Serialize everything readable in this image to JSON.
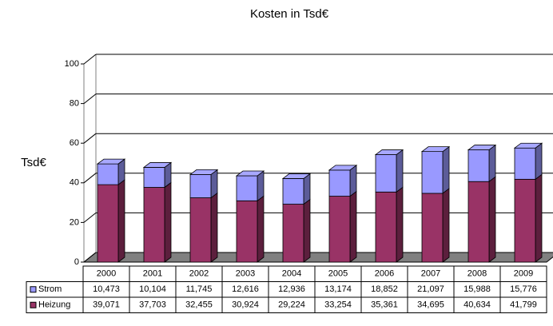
{
  "chart_data": {
    "type": "bar3d-stacked",
    "title": "Kosten in Tsd€",
    "y_label": "Tsd€",
    "categories": [
      "2000",
      "2001",
      "2002",
      "2003",
      "2004",
      "2005",
      "2006",
      "2007",
      "2008",
      "2009"
    ],
    "series": [
      {
        "name": "Heizung",
        "color": "#993366",
        "values": [
          39.071,
          37.703,
          32.455,
          30.924,
          29.224,
          33.254,
          35.361,
          34.695,
          40.634,
          41.799
        ],
        "value_labels": [
          "39,071",
          "37,703",
          "32,455",
          "30,924",
          "29,224",
          "33,254",
          "35,361",
          "34,695",
          "40,634",
          "41,799"
        ]
      },
      {
        "name": "Strom",
        "color": "#9999ff",
        "values": [
          10.473,
          10.104,
          11.745,
          12.616,
          12.936,
          13.174,
          18.852,
          21.097,
          15.988,
          15.776
        ],
        "value_labels": [
          "10,473",
          "10,104",
          "11,745",
          "12,616",
          "12,936",
          "13,174",
          "18,852",
          "21,097",
          "15,988",
          "15,776"
        ]
      }
    ],
    "ylim": [
      0,
      100
    ],
    "yticks": [
      0,
      20,
      40,
      60,
      80,
      100
    ],
    "grid": true
  }
}
